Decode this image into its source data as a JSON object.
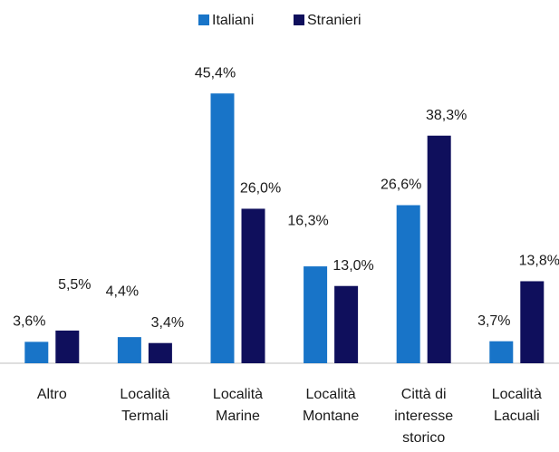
{
  "chart_data": {
    "type": "bar",
    "categories": [
      [
        "Altro"
      ],
      [
        "Località",
        "Termali"
      ],
      [
        "Località",
        "Marine"
      ],
      [
        "Località",
        "Montane"
      ],
      [
        "Città di",
        "interesse",
        "storico"
      ],
      [
        "Località",
        "Lacuali"
      ]
    ],
    "series": [
      {
        "name": "Italiani",
        "color": "#1874c8",
        "values": [
          3.6,
          4.4,
          45.4,
          16.3,
          26.6,
          3.7
        ],
        "value_labels": [
          "3,6%",
          "4,4%",
          "45,4%",
          "16,3%",
          "26,6%",
          "3,7%"
        ]
      },
      {
        "name": "Stranieri",
        "color": "#0f0f5c",
        "values": [
          5.5,
          3.4,
          26.0,
          13.0,
          38.3,
          13.8
        ],
        "value_labels": [
          "5,5%",
          "3,4%",
          "26,0%",
          "13,0%",
          "38,3%",
          "13,8%"
        ]
      }
    ]
  }
}
